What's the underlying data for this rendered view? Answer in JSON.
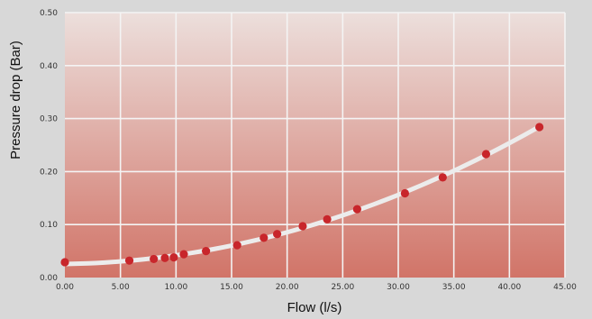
{
  "chart_data": {
    "type": "scatter",
    "title": "",
    "xlabel": "Flow (l/s)",
    "ylabel": "Pressure drop (Bar)",
    "xlim": [
      0,
      45
    ],
    "ylim": [
      0,
      0.5
    ],
    "x_ticks": [
      "0.00",
      "5.00",
      "10.00",
      "15.00",
      "20.00",
      "25.00",
      "30.00",
      "35.00",
      "40.00",
      "45.00"
    ],
    "x_tick_values": [
      0,
      5,
      10,
      15,
      20,
      25,
      30,
      35,
      40,
      45
    ],
    "y_ticks": [
      "0.00",
      "0.10",
      "0.20",
      "0.30",
      "0.40",
      "0.50"
    ],
    "y_tick_values": [
      0,
      0.1,
      0.2,
      0.3,
      0.4,
      0.5
    ],
    "grid": true,
    "series": [
      {
        "points": [
          {
            "x": 0.0,
            "y": 0.029
          },
          {
            "x": 5.8,
            "y": 0.032
          },
          {
            "x": 8.0,
            "y": 0.035
          },
          {
            "x": 9.0,
            "y": 0.037
          },
          {
            "x": 9.8,
            "y": 0.038
          },
          {
            "x": 10.7,
            "y": 0.044
          },
          {
            "x": 12.7,
            "y": 0.05
          },
          {
            "x": 15.5,
            "y": 0.061
          },
          {
            "x": 17.9,
            "y": 0.075
          },
          {
            "x": 19.1,
            "y": 0.082
          },
          {
            "x": 21.4,
            "y": 0.097
          },
          {
            "x": 23.6,
            "y": 0.11
          },
          {
            "x": 26.3,
            "y": 0.129
          },
          {
            "x": 30.6,
            "y": 0.159
          },
          {
            "x": 34.0,
            "y": 0.189
          },
          {
            "x": 37.9,
            "y": 0.233
          },
          {
            "x": 42.7,
            "y": 0.284
          }
        ]
      }
    ],
    "trendline": "quadratic",
    "colors": {
      "point": "#c8262b",
      "trendline": "#ececec",
      "gridline": "#f4f4f4",
      "plot_top": "#ecdfdc",
      "plot_bottom": "#d17468"
    }
  }
}
